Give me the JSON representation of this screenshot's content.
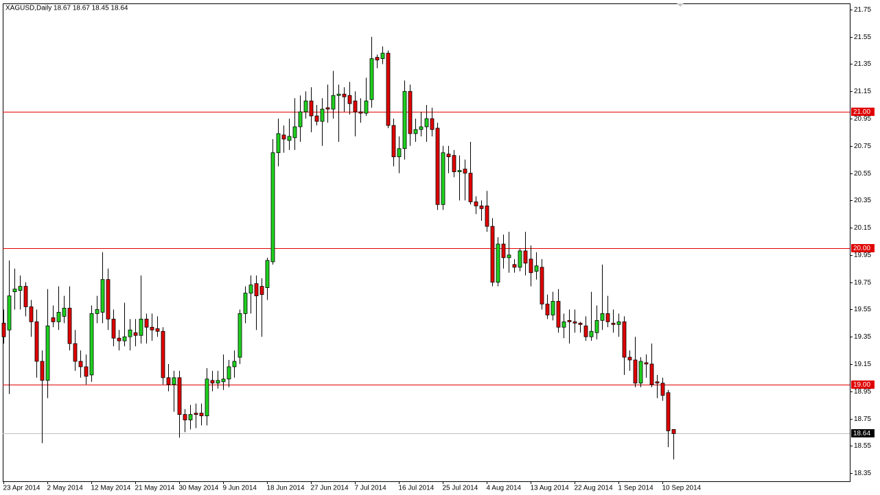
{
  "chart_data": {
    "type": "candlestick",
    "title": "XAGUSD,Daily  18.67 18.67 18.45 18.64",
    "categories": [
      "23 Apr 2014",
      null,
      null,
      null,
      null,
      null,
      null,
      null,
      "2 May 2014",
      null,
      null,
      null,
      null,
      null,
      null,
      null,
      "12 May 2014",
      null,
      null,
      null,
      null,
      null,
      null,
      null,
      "21 May 2014",
      null,
      null,
      null,
      null,
      null,
      null,
      null,
      "30 May 2014",
      null,
      null,
      null,
      null,
      null,
      null,
      null,
      "9 Jun 2014",
      null,
      null,
      null,
      null,
      null,
      null,
      null,
      "18 Jun 2014",
      null,
      null,
      null,
      null,
      null,
      null,
      null,
      "27 Jun 2014",
      null,
      null,
      null,
      null,
      null,
      null,
      null,
      "7 Jul 2014",
      null,
      null,
      null,
      null,
      null,
      null,
      null,
      "16 Jul 2014",
      null,
      null,
      null,
      null,
      null,
      null,
      null,
      "25 Jul 2014",
      null,
      null,
      null,
      null,
      null,
      null,
      null,
      "4 Aug 2014",
      null,
      null,
      null,
      null,
      null,
      null,
      null,
      "13 Aug 2014",
      null,
      null,
      null,
      null,
      null,
      null,
      null,
      "22 Aug 2014",
      null,
      null,
      null,
      null,
      null,
      null,
      null,
      "1 Sep 2014",
      null,
      null,
      null,
      null,
      null,
      null,
      null,
      "10 Sep 2014",
      null,
      null
    ],
    "open": [
      19.45,
      19.4,
      19.68,
      19.69,
      19.72,
      19.57,
      19.46,
      19.17,
      19.03,
      19.49,
      19.46,
      19.5,
      19.56,
      19.3,
      19.17,
      19.13,
      19.07,
      19.52,
      19.53,
      19.77,
      19.48,
      19.34,
      19.32,
      19.35,
      19.38,
      19.36,
      19.48,
      19.42,
      19.41,
      19.39,
      19.05,
      19.0,
      19.05,
      18.78,
      18.74,
      18.79,
      18.79,
      18.77,
      19.03,
      19.01,
      19.02,
      19.04,
      19.13,
      19.2,
      19.52,
      19.67,
      19.74,
      19.72,
      19.71,
      19.9,
      20.7,
      20.83,
      20.79,
      20.81,
      20.89,
      21.0,
      21.08,
      20.97,
      20.93,
      21.03,
      21.02,
      21.12,
      21.13,
      21.12,
      21.08,
      21.0,
      20.99,
      21.09,
      21.4,
      21.39,
      21.43,
      20.9,
      20.67,
      20.73,
      21.15,
      20.84,
      20.87,
      20.89,
      20.95,
      20.88,
      20.32,
      20.69,
      20.68,
      20.56,
      20.58,
      20.55,
      20.34,
      20.31,
      20.31,
      20.16,
      19.75,
      20.03,
      19.93,
      19.88,
      19.86,
      19.98,
      19.92,
      19.83,
      19.86,
      19.59,
      19.51,
      19.61,
      19.42,
      19.47,
      19.46,
      19.45,
      19.43,
      19.35,
      19.38,
      19.47,
      19.52,
      19.45,
      19.44,
      19.46,
      19.2,
      19.18,
      19.01,
      19.16,
      19.15,
      19.02,
      19.01,
      18.94,
      18.67
    ],
    "high": [
      19.55,
      19.91,
      19.85,
      19.8,
      19.75,
      19.62,
      19.55,
      19.25,
      19.7,
      19.58,
      19.72,
      19.65,
      19.72,
      19.4,
      19.25,
      19.22,
      19.58,
      19.65,
      19.97,
      19.85,
      19.55,
      19.4,
      19.6,
      19.48,
      19.48,
      19.8,
      19.52,
      19.52,
      19.5,
      19.42,
      19.15,
      19.1,
      19.1,
      18.82,
      18.85,
      18.86,
      18.86,
      19.12,
      19.1,
      19.1,
      19.22,
      19.18,
      19.25,
      19.55,
      19.72,
      19.8,
      19.8,
      19.78,
      19.93,
      20.8,
      20.95,
      20.9,
      20.95,
      21.1,
      21.12,
      21.15,
      21.18,
      21.05,
      21.1,
      21.2,
      21.3,
      21.2,
      21.18,
      21.22,
      21.15,
      21.1,
      21.25,
      21.55,
      21.42,
      21.48,
      21.45,
      20.95,
      20.82,
      21.23,
      21.2,
      20.95,
      21.0,
      21.05,
      21.03,
      20.92,
      20.75,
      20.75,
      20.72,
      20.68,
      20.65,
      20.78,
      20.38,
      20.35,
      20.42,
      20.22,
      20.08,
      20.1,
      20.12,
      19.92,
      20.0,
      20.12,
      20.02,
      19.97,
      19.92,
      19.66,
      19.68,
      19.7,
      19.52,
      19.55,
      19.55,
      19.46,
      19.5,
      19.68,
      19.58,
      19.88,
      19.65,
      19.55,
      19.52,
      19.5,
      19.25,
      19.35,
      19.2,
      19.22,
      19.3,
      19.07,
      19.05,
      18.96,
      18.67
    ],
    "low": [
      19.3,
      18.93,
      19.55,
      19.55,
      19.5,
      19.35,
      19.05,
      18.57,
      18.9,
      19.42,
      19.4,
      19.45,
      19.25,
      19.1,
      19.05,
      19.0,
      19.02,
      19.45,
      19.45,
      19.4,
      19.28,
      19.25,
      19.28,
      19.25,
      19.28,
      19.3,
      19.3,
      19.32,
      19.35,
      19.0,
      18.95,
      18.8,
      18.61,
      18.65,
      18.67,
      18.68,
      18.7,
      18.7,
      18.95,
      18.97,
      18.96,
      18.98,
      19.05,
      19.15,
      19.45,
      19.52,
      19.4,
      19.35,
      19.62,
      19.88,
      20.6,
      20.7,
      20.72,
      20.72,
      20.78,
      20.95,
      20.85,
      20.9,
      20.75,
      20.92,
      20.95,
      20.78,
      21.0,
      20.98,
      20.82,
      20.92,
      20.97,
      21.03,
      21.32,
      21.35,
      20.88,
      20.6,
      20.55,
      20.65,
      20.75,
      20.78,
      20.82,
      20.78,
      20.82,
      20.28,
      20.28,
      20.55,
      20.52,
      20.35,
      20.35,
      20.32,
      20.25,
      20.2,
      20.12,
      19.72,
      19.72,
      19.85,
      19.82,
      19.82,
      19.83,
      19.8,
      19.72,
      19.77,
      19.55,
      19.48,
      19.47,
      19.38,
      19.34,
      19.3,
      19.38,
      19.38,
      19.32,
      19.32,
      19.33,
      19.4,
      19.42,
      19.38,
      19.35,
      19.07,
      19.1,
      18.98,
      18.98,
      19.05,
      18.98,
      18.9,
      18.88,
      18.54,
      18.45
    ],
    "close": [
      19.35,
      19.65,
      19.7,
      19.72,
      19.57,
      19.46,
      19.17,
      19.03,
      19.43,
      19.46,
      19.53,
      19.56,
      19.3,
      19.17,
      19.13,
      19.06,
      19.52,
      19.55,
      19.77,
      19.48,
      19.34,
      19.32,
      19.35,
      19.4,
      19.36,
      19.48,
      19.42,
      19.4,
      19.39,
      19.05,
      19.0,
      19.05,
      18.78,
      18.74,
      18.78,
      18.78,
      18.77,
      19.04,
      19.01,
      19.03,
      19.04,
      19.13,
      19.17,
      19.52,
      19.67,
      19.73,
      19.65,
      19.66,
      19.91,
      20.7,
      20.84,
      20.8,
      20.82,
      20.89,
      21.0,
      21.08,
      20.97,
      20.93,
      21.02,
      21.02,
      21.12,
      21.13,
      21.11,
      21.06,
      21.0,
      20.99,
      21.08,
      21.39,
      21.38,
      21.43,
      20.9,
      20.67,
      20.73,
      21.15,
      20.84,
      20.87,
      20.89,
      20.95,
      20.87,
      20.32,
      20.7,
      20.67,
      20.56,
      20.57,
      20.55,
      20.34,
      20.31,
      20.29,
      20.16,
      19.75,
      20.03,
      19.93,
      19.95,
      19.86,
      19.98,
      19.89,
      19.82,
      19.87,
      19.59,
      19.51,
      19.61,
      19.42,
      19.46,
      19.46,
      19.45,
      19.44,
      19.35,
      19.39,
      19.47,
      19.52,
      19.46,
      19.44,
      19.46,
      19.2,
      19.18,
      19.01,
      19.17,
      19.15,
      19.0,
      19.01,
      18.92,
      18.66,
      18.64
    ],
    "up_color": "#1fcf1f",
    "down_color": "#e00000",
    "ylim": [
      18.29,
      21.795
    ],
    "yticks": [
      21.75,
      21.55,
      21.35,
      21.15,
      20.95,
      20.75,
      20.55,
      20.35,
      20.15,
      19.95,
      19.75,
      19.55,
      19.35,
      19.15,
      18.95,
      18.75,
      18.55,
      18.35
    ],
    "hlines": [
      {
        "value": 21,
        "label": "21.00"
      },
      {
        "value": 20,
        "label": "20.00"
      },
      {
        "value": 19,
        "label": "19.00"
      }
    ],
    "hline_color": "#e00000",
    "current_price": {
      "value": 18.64,
      "label": "18.64"
    }
  }
}
